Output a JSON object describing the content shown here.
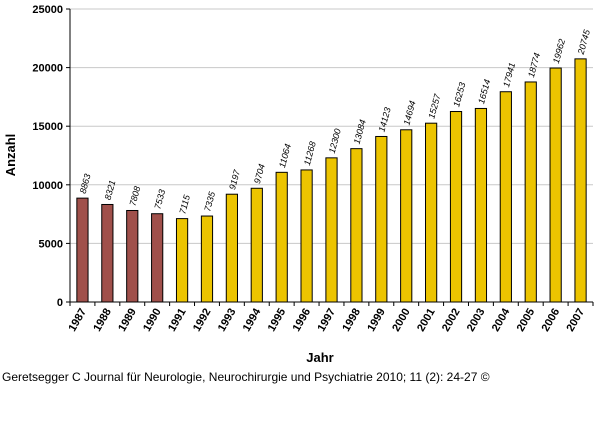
{
  "chart_data": {
    "type": "bar",
    "categories": [
      "1987",
      "1988",
      "1989",
      "1990",
      "1991",
      "1992",
      "1993",
      "1994",
      "1995",
      "1996",
      "1997",
      "1998",
      "1999",
      "2000",
      "2001",
      "2002",
      "2003",
      "2004",
      "2005",
      "2006",
      "2007"
    ],
    "values": [
      8863,
      8321,
      7808,
      7533,
      7115,
      7335,
      9197,
      9704,
      11064,
      11268,
      12300,
      13084,
      14123,
      14694,
      15257,
      16253,
      16514,
      17941,
      18774,
      19962,
      20745
    ],
    "data_labels": [
      "8863",
      "8321",
      "7808",
      "7533",
      "7115",
      "7335",
      "9197",
      "9704",
      "11064",
      "11268",
      "12300",
      "13084",
      "14123",
      "14694",
      "15257",
      "16253",
      "16514",
      "17941",
      "18774",
      "19962",
      "20745"
    ],
    "bar_colors": [
      "#a0504b",
      "#a0504b",
      "#a0504b",
      "#a0504b",
      "#ecc400",
      "#ecc400",
      "#ecc400",
      "#ecc400",
      "#ecc400",
      "#ecc400",
      "#ecc400",
      "#ecc400",
      "#ecc400",
      "#ecc400",
      "#ecc400",
      "#ecc400",
      "#ecc400",
      "#ecc400",
      "#ecc400",
      "#ecc400",
      "#ecc400"
    ],
    "xlabel": "Jahr",
    "ylabel": "Anzahl",
    "ylim": [
      0,
      25000
    ],
    "yticks": [
      0,
      5000,
      10000,
      15000,
      20000,
      25000
    ],
    "ytick_labels": [
      "0",
      "5000",
      "10000",
      "15000",
      "20000",
      "25000"
    ],
    "grid": true,
    "legend": "none"
  },
  "source_note": "Geretsegger C Journal für Neurologie, Neurochirurgie und Psychiatrie 2010; 11 (2): 24-27 ©"
}
